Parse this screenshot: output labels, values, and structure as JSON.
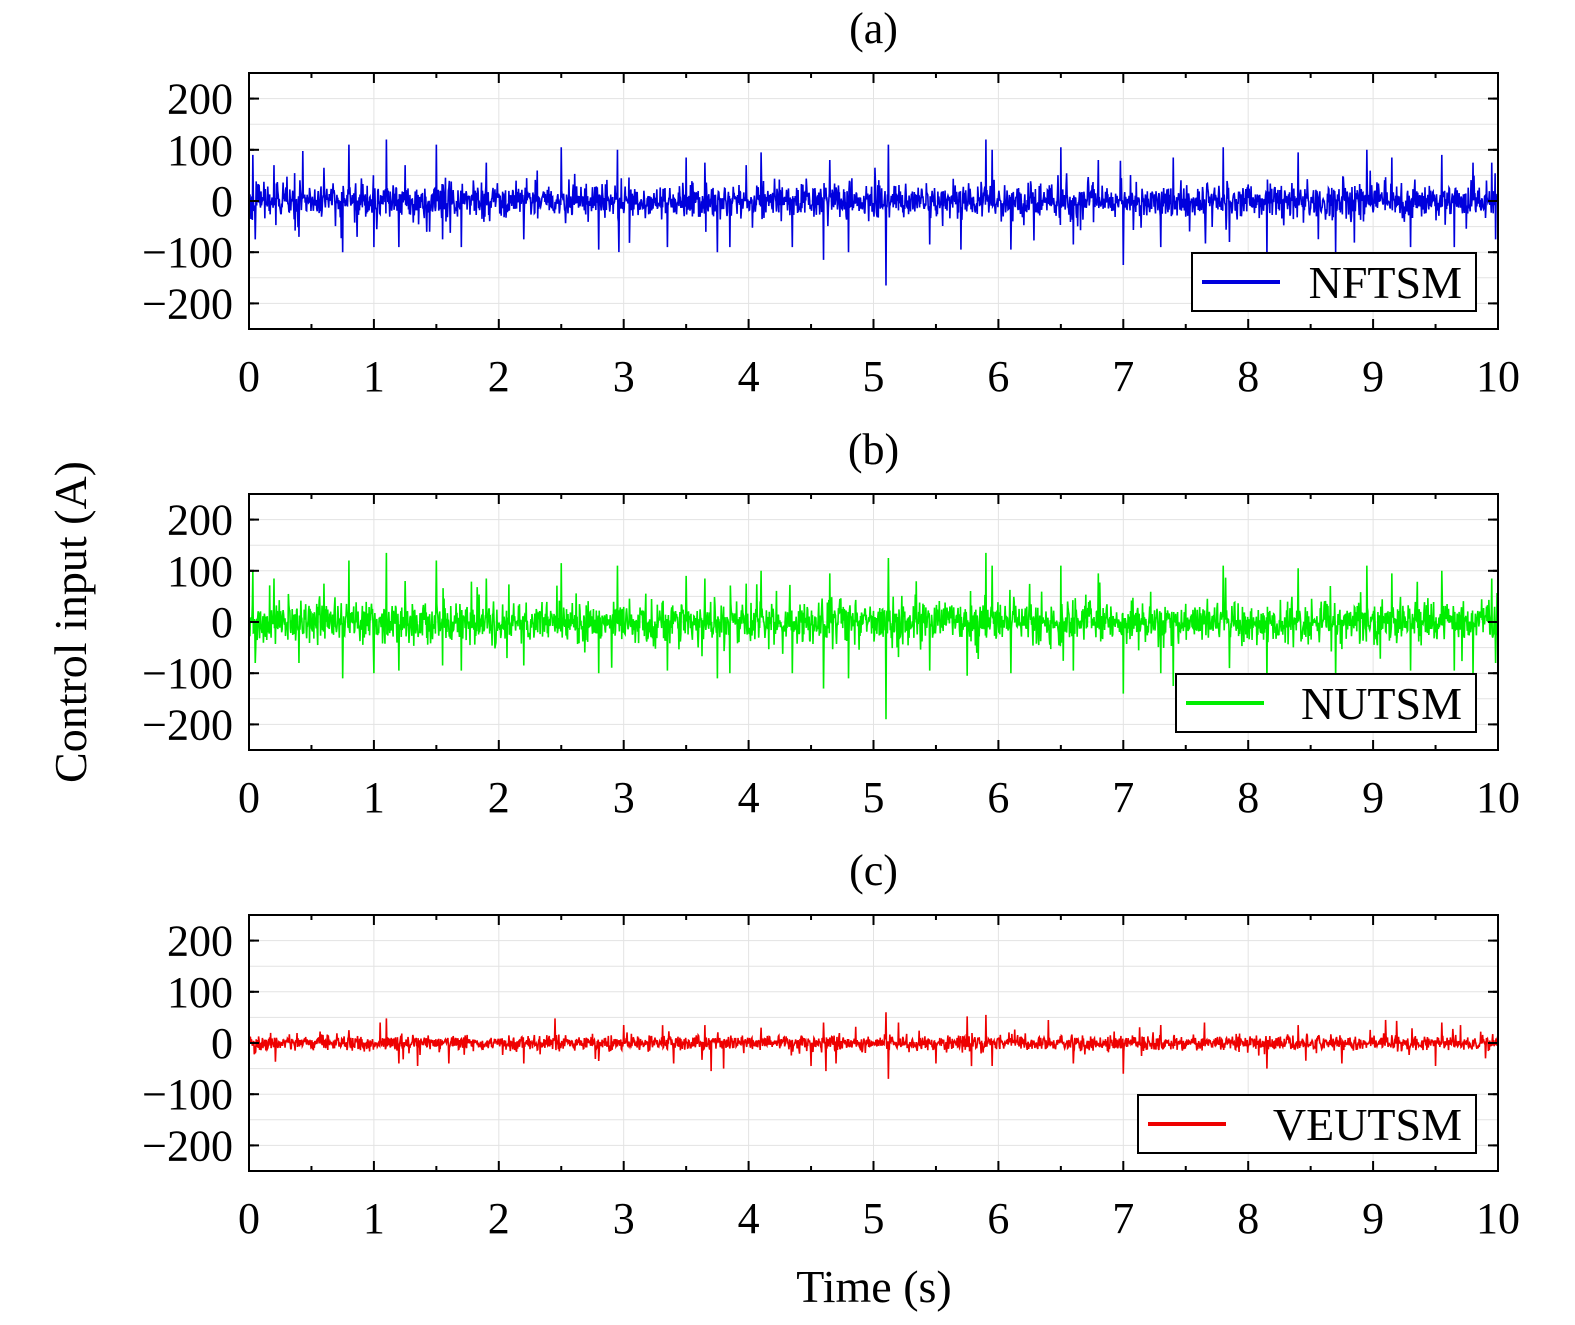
{
  "ylabel": "Control input (A)",
  "xlabel": "Time (s)",
  "chart_data": [
    {
      "type": "line",
      "title": "(a)",
      "xlim": [
        0,
        10
      ],
      "ylim": [
        -250,
        250
      ],
      "xticks": [
        0,
        1,
        2,
        3,
        4,
        5,
        6,
        7,
        8,
        9,
        10
      ],
      "yticks": [
        -200,
        -100,
        0,
        100,
        200
      ],
      "xtick_labels": [
        "0",
        "1",
        "2",
        "3",
        "4",
        "5",
        "6",
        "7",
        "8",
        "9",
        "10"
      ],
      "ytick_labels": [
        "−200",
        "−100",
        "0",
        "100",
        "200"
      ],
      "grid": true,
      "legend_position": "bottom-right",
      "series": [
        {
          "name": "NFTSM",
          "color": "#0000dd",
          "noise_amplitude": 30,
          "spikes": [
            {
              "x": 0.03,
              "y": 90
            },
            {
              "x": 0.05,
              "y": -75
            },
            {
              "x": 0.2,
              "y": 70
            },
            {
              "x": 0.4,
              "y": -70
            },
            {
              "x": 0.6,
              "y": 65
            },
            {
              "x": 0.75,
              "y": -100
            },
            {
              "x": 0.8,
              "y": 110
            },
            {
              "x": 1.0,
              "y": -90
            },
            {
              "x": 1.1,
              "y": 120
            },
            {
              "x": 1.2,
              "y": -90
            },
            {
              "x": 1.25,
              "y": 70
            },
            {
              "x": 1.5,
              "y": 110
            },
            {
              "x": 1.55,
              "y": -75
            },
            {
              "x": 1.7,
              "y": -90
            },
            {
              "x": 1.9,
              "y": 75
            },
            {
              "x": 2.2,
              "y": -75
            },
            {
              "x": 2.5,
              "y": 105
            },
            {
              "x": 2.8,
              "y": -95
            },
            {
              "x": 2.95,
              "y": 100
            },
            {
              "x": 3.35,
              "y": -90
            },
            {
              "x": 3.5,
              "y": 85
            },
            {
              "x": 3.65,
              "y": 75
            },
            {
              "x": 3.75,
              "y": -100
            },
            {
              "x": 3.85,
              "y": -90
            },
            {
              "x": 3.98,
              "y": 70
            },
            {
              "x": 4.1,
              "y": 95
            },
            {
              "x": 4.35,
              "y": -90
            },
            {
              "x": 4.6,
              "y": -115
            },
            {
              "x": 4.65,
              "y": 80
            },
            {
              "x": 4.8,
              "y": -100
            },
            {
              "x": 5.1,
              "y": -165
            },
            {
              "x": 5.12,
              "y": 110
            },
            {
              "x": 5.45,
              "y": -85
            },
            {
              "x": 5.7,
              "y": -95
            },
            {
              "x": 5.9,
              "y": 120
            },
            {
              "x": 5.95,
              "y": 100
            },
            {
              "x": 6.1,
              "y": -95
            },
            {
              "x": 6.5,
              "y": 105
            },
            {
              "x": 6.6,
              "y": -85
            },
            {
              "x": 6.8,
              "y": 80
            },
            {
              "x": 7.0,
              "y": -125
            },
            {
              "x": 7.3,
              "y": -90
            },
            {
              "x": 7.4,
              "y": 85
            },
            {
              "x": 7.8,
              "y": 105
            },
            {
              "x": 7.85,
              "y": -80
            },
            {
              "x": 8.15,
              "y": -110
            },
            {
              "x": 8.4,
              "y": 95
            },
            {
              "x": 8.7,
              "y": -100
            },
            {
              "x": 8.95,
              "y": 100
            },
            {
              "x": 9.15,
              "y": 85
            },
            {
              "x": 9.3,
              "y": -90
            },
            {
              "x": 9.55,
              "y": 90
            },
            {
              "x": 9.65,
              "y": -90
            },
            {
              "x": 9.8,
              "y": 75
            },
            {
              "x": 9.95,
              "y": 75
            },
            {
              "x": 9.98,
              "y": -75
            }
          ]
        }
      ]
    },
    {
      "type": "line",
      "title": "(b)",
      "xlim": [
        0,
        10
      ],
      "ylim": [
        -250,
        250
      ],
      "xticks": [
        0,
        1,
        2,
        3,
        4,
        5,
        6,
        7,
        8,
        9,
        10
      ],
      "yticks": [
        -200,
        -100,
        0,
        100,
        200
      ],
      "xtick_labels": [
        "0",
        "1",
        "2",
        "3",
        "4",
        "5",
        "6",
        "7",
        "8",
        "9",
        "10"
      ],
      "ytick_labels": [
        "−200",
        "−100",
        "0",
        "100",
        "200"
      ],
      "grid": true,
      "legend_position": "bottom-right",
      "series": [
        {
          "name": "NUTSM",
          "color": "#00ee00",
          "noise_amplitude": 36,
          "spikes": [
            {
              "x": 0.03,
              "y": 100
            },
            {
              "x": 0.05,
              "y": -80
            },
            {
              "x": 0.2,
              "y": 85
            },
            {
              "x": 0.4,
              "y": -80
            },
            {
              "x": 0.6,
              "y": 75
            },
            {
              "x": 0.75,
              "y": -110
            },
            {
              "x": 0.8,
              "y": 120
            },
            {
              "x": 1.0,
              "y": -100
            },
            {
              "x": 1.1,
              "y": 135
            },
            {
              "x": 1.2,
              "y": -95
            },
            {
              "x": 1.25,
              "y": 80
            },
            {
              "x": 1.5,
              "y": 120
            },
            {
              "x": 1.55,
              "y": -85
            },
            {
              "x": 1.7,
              "y": -95
            },
            {
              "x": 1.9,
              "y": 85
            },
            {
              "x": 2.2,
              "y": -85
            },
            {
              "x": 2.5,
              "y": 115
            },
            {
              "x": 2.8,
              "y": -100
            },
            {
              "x": 2.95,
              "y": 110
            },
            {
              "x": 3.35,
              "y": -95
            },
            {
              "x": 3.5,
              "y": 90
            },
            {
              "x": 3.65,
              "y": 85
            },
            {
              "x": 3.75,
              "y": -110
            },
            {
              "x": 3.85,
              "y": -100
            },
            {
              "x": 3.98,
              "y": 75
            },
            {
              "x": 4.1,
              "y": 100
            },
            {
              "x": 4.35,
              "y": -100
            },
            {
              "x": 4.6,
              "y": -130
            },
            {
              "x": 4.65,
              "y": 95
            },
            {
              "x": 4.8,
              "y": -110
            },
            {
              "x": 5.1,
              "y": -190
            },
            {
              "x": 5.12,
              "y": 125
            },
            {
              "x": 5.45,
              "y": -95
            },
            {
              "x": 5.75,
              "y": -105
            },
            {
              "x": 5.9,
              "y": 135
            },
            {
              "x": 5.95,
              "y": 110
            },
            {
              "x": 6.1,
              "y": -100
            },
            {
              "x": 6.5,
              "y": 110
            },
            {
              "x": 6.6,
              "y": -95
            },
            {
              "x": 6.8,
              "y": 95
            },
            {
              "x": 7.0,
              "y": -140
            },
            {
              "x": 7.3,
              "y": -100
            },
            {
              "x": 7.4,
              "y": -125
            },
            {
              "x": 7.8,
              "y": 110
            },
            {
              "x": 7.85,
              "y": -90
            },
            {
              "x": 8.15,
              "y": -120
            },
            {
              "x": 8.4,
              "y": 105
            },
            {
              "x": 8.7,
              "y": -110
            },
            {
              "x": 8.95,
              "y": 110
            },
            {
              "x": 9.15,
              "y": 95
            },
            {
              "x": 9.3,
              "y": -95
            },
            {
              "x": 9.55,
              "y": 100
            },
            {
              "x": 9.65,
              "y": -95
            },
            {
              "x": 9.8,
              "y": -105
            },
            {
              "x": 9.95,
              "y": 85
            },
            {
              "x": 9.98,
              "y": -80
            }
          ]
        }
      ]
    },
    {
      "type": "line",
      "title": "(c)",
      "xlim": [
        0,
        10
      ],
      "ylim": [
        -250,
        250
      ],
      "xticks": [
        0,
        1,
        2,
        3,
        4,
        5,
        6,
        7,
        8,
        9,
        10
      ],
      "yticks": [
        -200,
        -100,
        0,
        100,
        200
      ],
      "xtick_labels": [
        "0",
        "1",
        "2",
        "3",
        "4",
        "5",
        "6",
        "7",
        "8",
        "9",
        "10"
      ],
      "ytick_labels": [
        "−200",
        "−100",
        "0",
        "100",
        "200"
      ],
      "grid": true,
      "legend_position": "bottom-right",
      "series": [
        {
          "name": "VEUTSM",
          "color": "#ee0000",
          "noise_amplitude": 13,
          "spikes": [
            {
              "x": 0.05,
              "y": -20
            },
            {
              "x": 0.8,
              "y": 25
            },
            {
              "x": 1.05,
              "y": 40
            },
            {
              "x": 1.1,
              "y": 48
            },
            {
              "x": 1.2,
              "y": -40
            },
            {
              "x": 1.35,
              "y": -45
            },
            {
              "x": 1.6,
              "y": -40
            },
            {
              "x": 2.2,
              "y": -40
            },
            {
              "x": 2.45,
              "y": 48
            },
            {
              "x": 2.8,
              "y": -35
            },
            {
              "x": 3.0,
              "y": 35
            },
            {
              "x": 3.4,
              "y": -40
            },
            {
              "x": 3.65,
              "y": 35
            },
            {
              "x": 3.7,
              "y": -55
            },
            {
              "x": 3.8,
              "y": -50
            },
            {
              "x": 4.1,
              "y": 30
            },
            {
              "x": 4.5,
              "y": -45
            },
            {
              "x": 4.6,
              "y": 40
            },
            {
              "x": 4.62,
              "y": -55
            },
            {
              "x": 4.7,
              "y": -40
            },
            {
              "x": 5.1,
              "y": 60
            },
            {
              "x": 5.12,
              "y": -70
            },
            {
              "x": 5.2,
              "y": 40
            },
            {
              "x": 5.5,
              "y": -40
            },
            {
              "x": 5.75,
              "y": 52
            },
            {
              "x": 5.9,
              "y": 55
            },
            {
              "x": 5.95,
              "y": -45
            },
            {
              "x": 6.4,
              "y": 45
            },
            {
              "x": 6.6,
              "y": -40
            },
            {
              "x": 7.0,
              "y": -60
            },
            {
              "x": 7.3,
              "y": 35
            },
            {
              "x": 7.65,
              "y": 40
            },
            {
              "x": 8.15,
              "y": -50
            },
            {
              "x": 8.4,
              "y": 35
            },
            {
              "x": 8.75,
              "y": -40
            },
            {
              "x": 9.1,
              "y": 45
            },
            {
              "x": 9.5,
              "y": -45
            },
            {
              "x": 9.55,
              "y": 40
            },
            {
              "x": 9.7,
              "y": 35
            },
            {
              "x": 9.9,
              "y": -30
            }
          ]
        }
      ]
    }
  ]
}
